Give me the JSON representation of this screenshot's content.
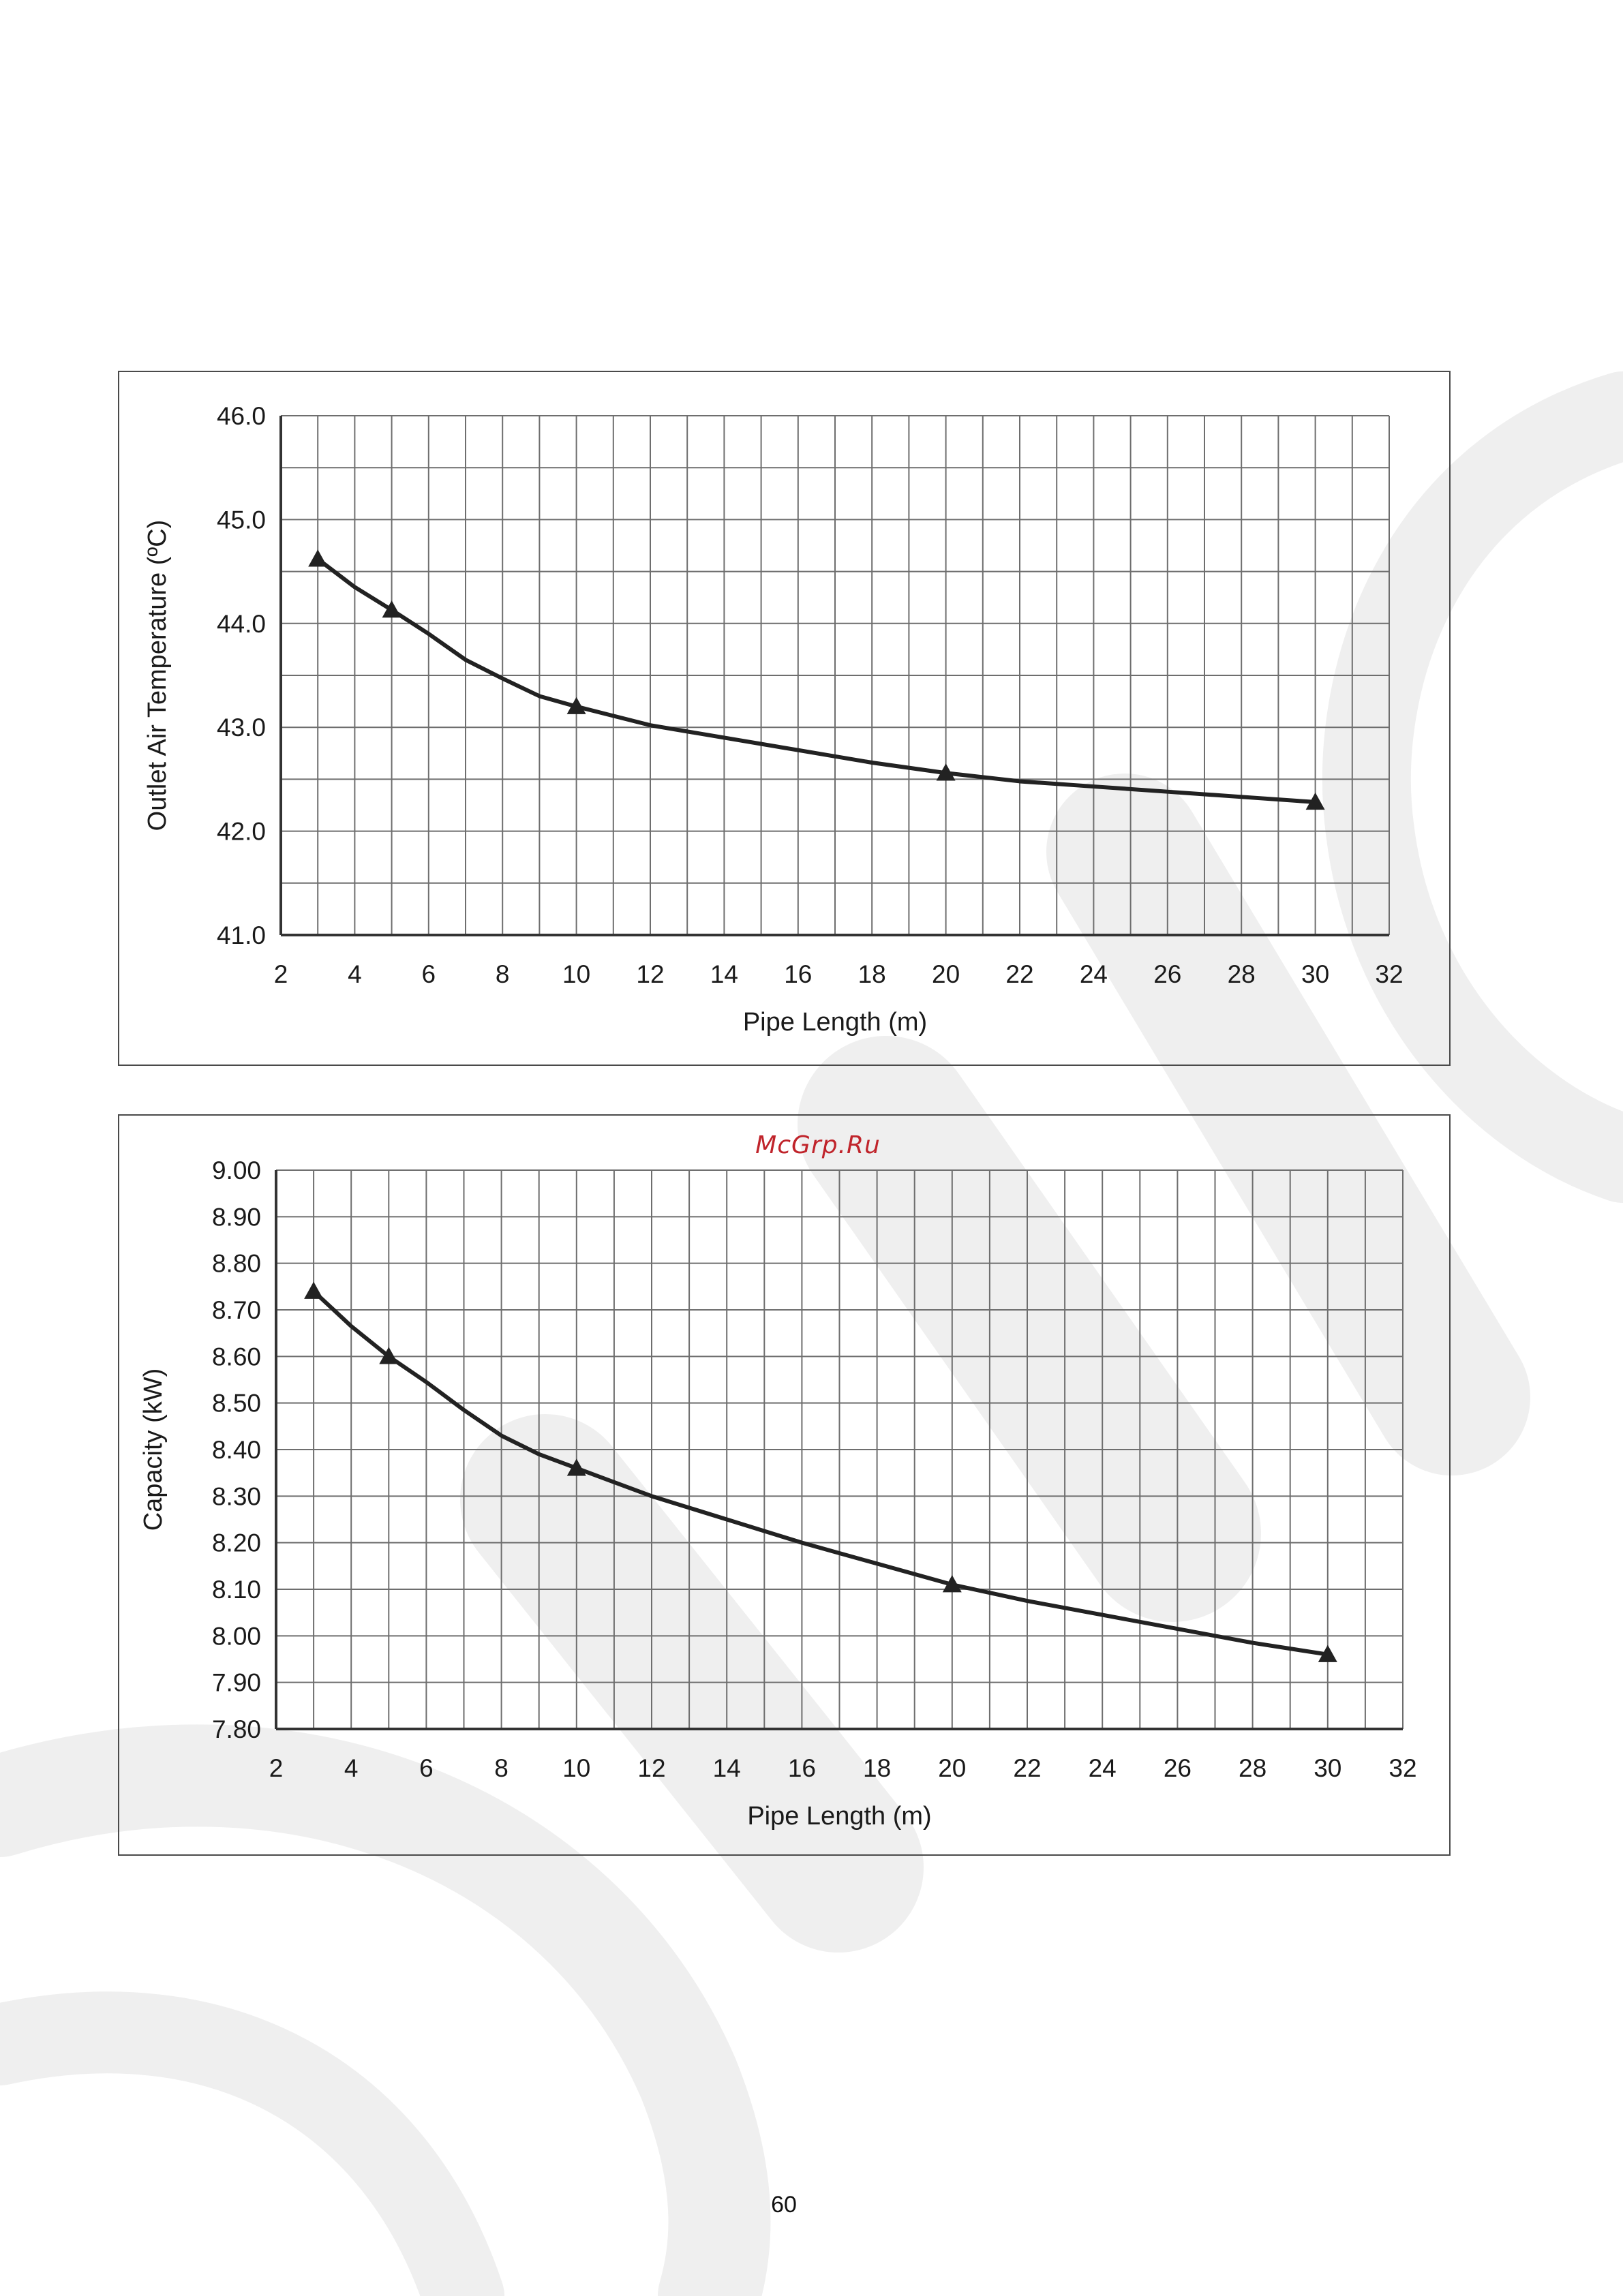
{
  "page": {
    "page_number": "60",
    "site_mark": "McGrp.Ru"
  },
  "colors": {
    "line": "#222222",
    "grid": "#6e6e6e",
    "axis": "#333333",
    "text": "#1a1a1a",
    "frame": "#4a4a4a",
    "watermark": "#eeeeee"
  },
  "chart_data": [
    {
      "type": "line",
      "title": "",
      "xlabel": "Pipe Length (m)",
      "ylabel": "Outlet Air Temperature (ºC)",
      "xlim": [
        2,
        32
      ],
      "ylim": [
        41.0,
        46.0
      ],
      "x_ticks": [
        "2",
        "4",
        "6",
        "8",
        "10",
        "12",
        "14",
        "16",
        "18",
        "20",
        "22",
        "24",
        "26",
        "28",
        "30",
        "32"
      ],
      "y_ticks": [
        "41.0",
        "42.0",
        "43.0",
        "44.0",
        "45.0",
        "46.0"
      ],
      "x_minor_step": 1,
      "y_minor_step": 0.5,
      "grid": true,
      "legend": "none",
      "marker": "triangle",
      "series": [
        {
          "x": [
            3,
            4,
            5,
            6,
            7,
            8,
            9,
            10,
            12,
            14,
            16,
            18,
            20,
            22,
            24,
            26,
            28,
            30
          ],
          "y": [
            44.62,
            44.35,
            44.13,
            43.9,
            43.65,
            43.47,
            43.3,
            43.2,
            43.02,
            42.9,
            42.78,
            42.66,
            42.56,
            42.48,
            42.43,
            42.38,
            42.33,
            42.28
          ],
          "markers_at": [
            3,
            5,
            10,
            20,
            30
          ]
        }
      ]
    },
    {
      "type": "line",
      "title": "",
      "xlabel": "Pipe Length (m)",
      "ylabel": "Capacity (kW)",
      "xlim": [
        2,
        32
      ],
      "ylim": [
        7.8,
        9.0
      ],
      "x_ticks": [
        "2",
        "4",
        "6",
        "8",
        "10",
        "12",
        "14",
        "16",
        "18",
        "20",
        "22",
        "24",
        "26",
        "28",
        "30",
        "32"
      ],
      "y_ticks": [
        "7.80",
        "7.90",
        "8.00",
        "8.10",
        "8.20",
        "8.30",
        "8.40",
        "8.50",
        "8.60",
        "8.70",
        "8.80",
        "8.90",
        "9.00"
      ],
      "x_minor_step": 1,
      "y_minor_step": 0.1,
      "grid": true,
      "legend": "none",
      "marker": "triangle",
      "series": [
        {
          "x": [
            3,
            4,
            5,
            6,
            7,
            8,
            9,
            10,
            12,
            14,
            16,
            18,
            20,
            22,
            24,
            26,
            28,
            30
          ],
          "y": [
            8.74,
            8.665,
            8.6,
            8.545,
            8.485,
            8.43,
            8.39,
            8.36,
            8.3,
            8.25,
            8.2,
            8.155,
            8.11,
            8.075,
            8.045,
            8.015,
            7.985,
            7.96
          ],
          "markers_at": [
            3,
            5,
            10,
            20,
            30
          ]
        }
      ]
    }
  ]
}
